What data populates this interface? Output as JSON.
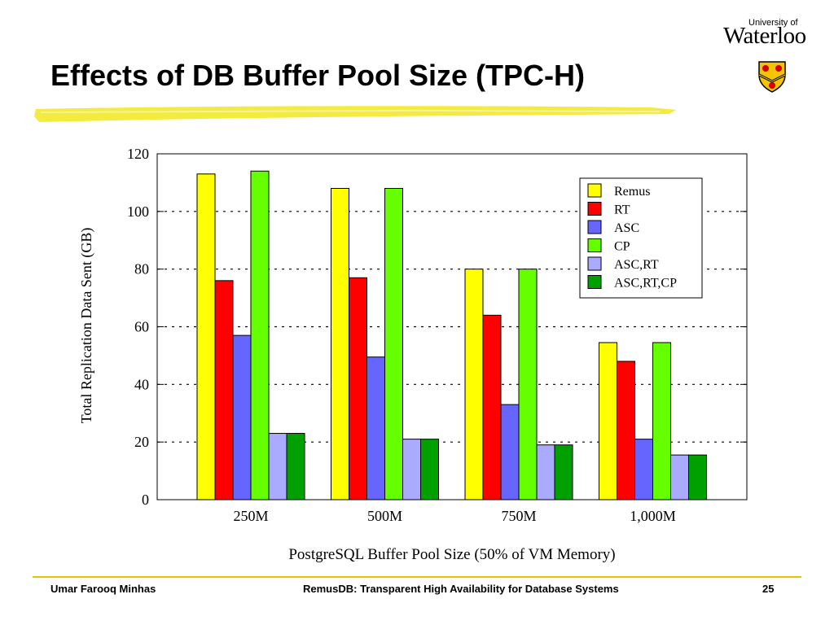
{
  "slide": {
    "title": "Effects of DB Buffer Pool Size (TPC-H)"
  },
  "logo": {
    "university_of": "University of",
    "wordmark": "Waterloo"
  },
  "footer": {
    "author": "Umar Farooq Minhas",
    "subject": "RemusDB: Transparent High Availability for Database Systems",
    "page": "25"
  },
  "colors": {
    "highlight": "#f2ea2a",
    "footer_line": "#e6c300"
  },
  "chart_data": {
    "type": "bar",
    "title": "",
    "xlabel": "PostgreSQL Buffer Pool Size (50% of VM Memory)",
    "ylabel": "Total Replication Data Sent (GB)",
    "categories": [
      "250M",
      "500M",
      "750M",
      "1,000M"
    ],
    "ylim": [
      0,
      120
    ],
    "yticks": [
      0,
      20,
      40,
      60,
      80,
      100,
      120
    ],
    "grid": "horizontal-dotted",
    "legend_position": "top-right",
    "series": [
      {
        "name": "Remus",
        "color": "#ffff00",
        "values": [
          113,
          108,
          80,
          54.5
        ]
      },
      {
        "name": "RT",
        "color": "#ff0000",
        "values": [
          76,
          77,
          64,
          48
        ]
      },
      {
        "name": "ASC",
        "color": "#6666ff",
        "values": [
          57,
          49.5,
          33,
          21
        ]
      },
      {
        "name": "CP",
        "color": "#66ff00",
        "values": [
          114,
          108,
          80,
          54.5
        ]
      },
      {
        "name": "ASC,RT",
        "color": "#aaaaff",
        "values": [
          23,
          21,
          19,
          15.5
        ]
      },
      {
        "name": "ASC,RT,CP",
        "color": "#00a000",
        "values": [
          23,
          21,
          19,
          15.5
        ]
      }
    ]
  }
}
